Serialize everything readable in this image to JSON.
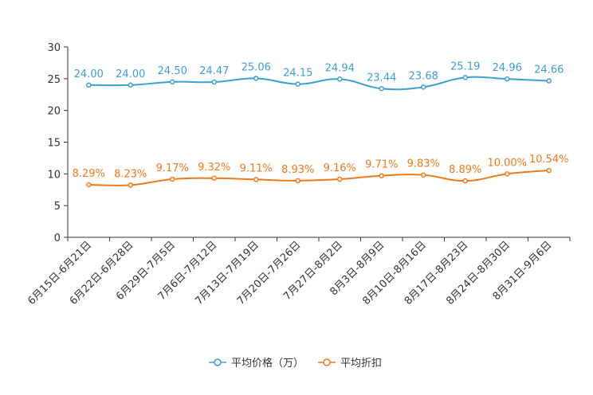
{
  "chart_data": {
    "type": "line",
    "categories": [
      "6月15日-6月21日",
      "6月22日-6月28日",
      "6月29日-7月5日",
      "7月6日-7月12日",
      "7月13日-7月19日",
      "7月20日-7月26日",
      "7月27日-8月2日",
      "8月3日-8月9日",
      "8月10日-8月16日",
      "8月17日-8月23日",
      "8月24日-8月30日",
      "8月31日-9月6日"
    ],
    "series": [
      {
        "name": "平均价格（万）",
        "values": [
          24.0,
          24.0,
          24.5,
          24.47,
          25.06,
          24.15,
          24.94,
          23.44,
          23.68,
          25.19,
          24.96,
          24.66
        ],
        "labels": [
          "24.00",
          "24.00",
          "24.50",
          "24.47",
          "25.06",
          "24.15",
          "24.94",
          "23.44",
          "23.68",
          "25.19",
          "24.96",
          "24.66"
        ],
        "color": "#3b9fd1"
      },
      {
        "name": "平均折扣",
        "values": [
          8.29,
          8.23,
          9.17,
          9.32,
          9.11,
          8.93,
          9.16,
          9.71,
          9.83,
          8.89,
          10.0,
          10.54
        ],
        "labels": [
          "8.29%",
          "8.23%",
          "9.17%",
          "9.32%",
          "9.11%",
          "8.93%",
          "9.16%",
          "9.71%",
          "9.83%",
          "8.89%",
          "10.00%",
          "10.54%"
        ],
        "color": "#f07a1a"
      }
    ],
    "yticks": [
      "0",
      "5",
      "10",
      "15",
      "20",
      "25",
      "30"
    ],
    "ylim": [
      0,
      30
    ],
    "title": "",
    "xlabel": "",
    "ylabel": "",
    "grid": false,
    "legend_position": "bottom-center"
  }
}
